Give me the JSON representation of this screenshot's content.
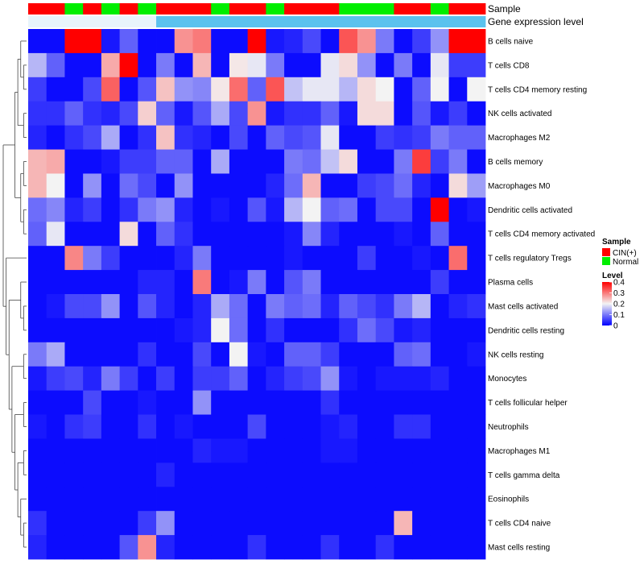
{
  "chart_data": {
    "type": "heatmap",
    "title": "",
    "xlabel": "",
    "ylabel": "",
    "annotation_tracks": [
      {
        "name": "Sample",
        "values": [
          "CIN(+)",
          "CIN(+)",
          "Normal",
          "CIN(+)",
          "Normal",
          "CIN(+)",
          "Normal",
          "CIN(+)",
          "CIN(+)",
          "CIN(+)",
          "Normal",
          "CIN(+)",
          "CIN(+)",
          "Normal",
          "CIN(+)",
          "CIN(+)",
          "CIN(+)",
          "Normal",
          "Normal",
          "Normal",
          "CIN(+)",
          "CIN(+)",
          "Normal",
          "CIN(+)",
          "CIN(+)"
        ]
      },
      {
        "name": "Gene expression level",
        "values": [
          "low",
          "low",
          "low",
          "low",
          "low",
          "low",
          "low",
          "high",
          "high",
          "high",
          "high",
          "high",
          "high",
          "high",
          "high",
          "high",
          "high",
          "high",
          "high",
          "high",
          "high",
          "high",
          "high",
          "high",
          "high"
        ]
      }
    ],
    "rows": [
      "B cells naive",
      "T cells CD8",
      "T cells CD4 memory resting",
      "NK cells activated",
      "Macrophages M2",
      "B cells memory",
      "Macrophages M0",
      "Dendritic cells activated",
      "T cells CD4 memory activated",
      "T cells regulatory  Tregs",
      "Plasma cells",
      "Mast cells activated",
      "Dendritic cells resting",
      "NK cells resting",
      "Monocytes",
      "T cells follicular helper",
      "Neutrophils",
      "Macrophages M1",
      "T cells gamma delta",
      "Eosinophils",
      "T cells CD4 naive",
      "Mast cells resting"
    ],
    "values": [
      [
        0.01,
        0.01,
        0.4,
        0.4,
        0.02,
        0.08,
        0.01,
        0.01,
        0.28,
        0.3,
        0.01,
        0.01,
        0.4,
        0.02,
        0.03,
        0.06,
        0.01,
        0.33,
        0.28,
        0.1,
        0.01,
        0.05,
        0.12,
        0.4,
        0.4
      ],
      [
        0.15,
        0.08,
        0.01,
        0.01,
        0.26,
        0.4,
        0.01,
        0.1,
        0.01,
        0.25,
        0.01,
        0.21,
        0.19,
        0.1,
        0.01,
        0.01,
        0.19,
        0.22,
        0.12,
        0.01,
        0.1,
        0.01,
        0.19,
        0.05,
        0.05
      ],
      [
        0.05,
        0.01,
        0.01,
        0.06,
        0.32,
        0.01,
        0.07,
        0.24,
        0.12,
        0.11,
        0.21,
        0.31,
        0.08,
        0.33,
        0.16,
        0.19,
        0.19,
        0.15,
        0.22,
        0.2,
        0.01,
        0.08,
        0.2,
        0.01,
        0.2
      ],
      [
        0.04,
        0.04,
        0.08,
        0.04,
        0.03,
        0.06,
        0.23,
        0.08,
        0.02,
        0.07,
        0.14,
        0.06,
        0.28,
        0.02,
        0.04,
        0.04,
        0.08,
        0.02,
        0.22,
        0.22,
        0.01,
        0.07,
        0.02,
        0.05,
        0.01
      ],
      [
        0.03,
        0.01,
        0.04,
        0.06,
        0.14,
        0.01,
        0.04,
        0.24,
        0.04,
        0.03,
        0.01,
        0.06,
        0.01,
        0.08,
        0.06,
        0.07,
        0.19,
        0.01,
        0.01,
        0.05,
        0.04,
        0.05,
        0.1,
        0.08,
        0.08
      ],
      [
        0.25,
        0.26,
        0.01,
        0.01,
        0.02,
        0.05,
        0.05,
        0.08,
        0.08,
        0.01,
        0.14,
        0.01,
        0.01,
        0.01,
        0.1,
        0.09,
        0.16,
        0.22,
        0.01,
        0.01,
        0.1,
        0.35,
        0.05,
        0.1,
        0.01
      ],
      [
        0.25,
        0.2,
        0.01,
        0.12,
        0.01,
        0.09,
        0.06,
        0.01,
        0.12,
        0.01,
        0.01,
        0.01,
        0.01,
        0.03,
        0.09,
        0.25,
        0.01,
        0.01,
        0.05,
        0.06,
        0.09,
        0.03,
        0.01,
        0.22,
        0.13
      ],
      [
        0.09,
        0.11,
        0.03,
        0.05,
        0.01,
        0.04,
        0.1,
        0.12,
        0.03,
        0.01,
        0.02,
        0.01,
        0.07,
        0.02,
        0.15,
        0.2,
        0.08,
        0.09,
        0.01,
        0.06,
        0.06,
        0.01,
        0.4,
        0.01,
        0.02
      ],
      [
        0.08,
        0.19,
        0.01,
        0.01,
        0.01,
        0.22,
        0.01,
        0.08,
        0.04,
        0.01,
        0.01,
        0.01,
        0.01,
        0.01,
        0.02,
        0.11,
        0.03,
        0.01,
        0.01,
        0.01,
        0.02,
        0.01,
        0.08,
        0.01,
        0.01
      ],
      [
        0.01,
        0.01,
        0.29,
        0.1,
        0.05,
        0.01,
        0.01,
        0.01,
        0.03,
        0.1,
        0.01,
        0.01,
        0.01,
        0.01,
        0.02,
        0.01,
        0.01,
        0.01,
        0.05,
        0.01,
        0.01,
        0.02,
        0.01,
        0.31,
        0.01
      ],
      [
        0.01,
        0.01,
        0.01,
        0.01,
        0.01,
        0.01,
        0.03,
        0.03,
        0.01,
        0.3,
        0.01,
        0.02,
        0.1,
        0.01,
        0.07,
        0.1,
        0.01,
        0.01,
        0.01,
        0.01,
        0.01,
        0.01,
        0.05,
        0.01,
        0.01
      ],
      [
        0.01,
        0.02,
        0.06,
        0.06,
        0.12,
        0.01,
        0.07,
        0.03,
        0.01,
        0.03,
        0.14,
        0.09,
        0.01,
        0.1,
        0.08,
        0.09,
        0.03,
        0.08,
        0.06,
        0.04,
        0.1,
        0.15,
        0.01,
        0.03,
        0.04
      ],
      [
        0.01,
        0.01,
        0.01,
        0.01,
        0.01,
        0.01,
        0.01,
        0.01,
        0.02,
        0.03,
        0.2,
        0.09,
        0.01,
        0.04,
        0.01,
        0.01,
        0.01,
        0.04,
        0.09,
        0.06,
        0.02,
        0.03,
        0.01,
        0.01,
        0.01
      ],
      [
        0.1,
        0.14,
        0.01,
        0.01,
        0.01,
        0.01,
        0.04,
        0.01,
        0.01,
        0.06,
        0.01,
        0.2,
        0.02,
        0.01,
        0.08,
        0.08,
        0.05,
        0.01,
        0.01,
        0.01,
        0.08,
        0.09,
        0.01,
        0.01,
        0.02
      ],
      [
        0.02,
        0.05,
        0.06,
        0.03,
        0.1,
        0.05,
        0.01,
        0.05,
        0.01,
        0.05,
        0.05,
        0.08,
        0.01,
        0.03,
        0.05,
        0.06,
        0.12,
        0.02,
        0.01,
        0.02,
        0.02,
        0.02,
        0.03,
        0.01,
        0.01
      ],
      [
        0.01,
        0.01,
        0.01,
        0.06,
        0.01,
        0.01,
        0.02,
        0.01,
        0.01,
        0.12,
        0.01,
        0.01,
        0.01,
        0.01,
        0.01,
        0.01,
        0.04,
        0.01,
        0.01,
        0.01,
        0.01,
        0.01,
        0.01,
        0.01,
        0.01
      ],
      [
        0.02,
        0.01,
        0.04,
        0.05,
        0.01,
        0.01,
        0.04,
        0.01,
        0.02,
        0.01,
        0.01,
        0.01,
        0.06,
        0.01,
        0.01,
        0.01,
        0.02,
        0.03,
        0.01,
        0.01,
        0.04,
        0.04,
        0.01,
        0.01,
        0.01
      ],
      [
        0.01,
        0.01,
        0.01,
        0.01,
        0.01,
        0.01,
        0.01,
        0.01,
        0.01,
        0.03,
        0.02,
        0.02,
        0.01,
        0.01,
        0.01,
        0.01,
        0.02,
        0.02,
        0.01,
        0.01,
        0.01,
        0.01,
        0.01,
        0.01,
        0.01
      ],
      [
        0.01,
        0.01,
        0.01,
        0.01,
        0.01,
        0.01,
        0.01,
        0.03,
        0.01,
        0.01,
        0.01,
        0.01,
        0.01,
        0.01,
        0.01,
        0.01,
        0.01,
        0.01,
        0.01,
        0.01,
        0.01,
        0.01,
        0.01,
        0.01,
        0.01
      ],
      [
        0.01,
        0.01,
        0.01,
        0.01,
        0.01,
        0.01,
        0.01,
        0.01,
        0.01,
        0.01,
        0.01,
        0.01,
        0.01,
        0.01,
        0.01,
        0.01,
        0.01,
        0.01,
        0.01,
        0.01,
        0.01,
        0.01,
        0.01,
        0.01,
        0.01
      ],
      [
        0.04,
        0.01,
        0.01,
        0.01,
        0.01,
        0.01,
        0.05,
        0.12,
        0.01,
        0.01,
        0.01,
        0.01,
        0.01,
        0.01,
        0.01,
        0.01,
        0.01,
        0.01,
        0.01,
        0.01,
        0.25,
        0.01,
        0.01,
        0.01,
        0.01
      ],
      [
        0.03,
        0.01,
        0.01,
        0.01,
        0.01,
        0.07,
        0.28,
        0.03,
        0.01,
        0.01,
        0.01,
        0.01,
        0.04,
        0.01,
        0.01,
        0.01,
        0.04,
        0.01,
        0.01,
        0.04,
        0.01,
        0.01,
        0.01,
        0.01,
        0.01
      ]
    ],
    "colorscale": {
      "min": 0,
      "max": 0.4,
      "low_color": "#0000ff",
      "mid_color": "#f3f3f3",
      "high_color": "#ff0000"
    },
    "legend": {
      "sample_title": "Sample",
      "sample_items": [
        {
          "label": "CIN(+)",
          "color": "#ff0000"
        },
        {
          "label": "Normal",
          "color": "#00ee00"
        }
      ],
      "level_title": "Level",
      "level_ticks": [
        "0.4",
        "0.3",
        "0.2",
        "0.1",
        "0"
      ],
      "level_tick_values": [
        0.4,
        0.3,
        0.2,
        0.1,
        0
      ]
    },
    "level_track_colors": {
      "low": "#e8f4fb",
      "high": "#5bc2ee"
    },
    "grid": false,
    "legend_position": "right"
  }
}
